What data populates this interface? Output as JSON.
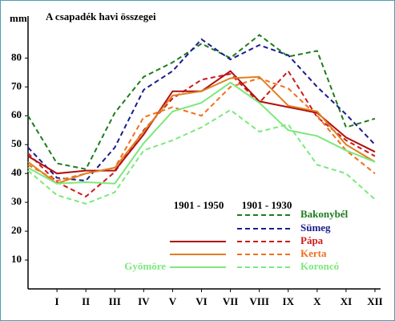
{
  "chart_data": {
    "type": "line",
    "title": "A csapadék havi összegei",
    "ylabel": "mm",
    "x": [
      0,
      1,
      2,
      3,
      4,
      5,
      6,
      7,
      8,
      9,
      10,
      11,
      12
    ],
    "xlim": [
      0,
      12
    ],
    "xticks": [
      {
        "value": 1,
        "label": "I"
      },
      {
        "value": 2,
        "label": "II"
      },
      {
        "value": 3,
        "label": "III"
      },
      {
        "value": 4,
        "label": "IV"
      },
      {
        "value": 5,
        "label": "V"
      },
      {
        "value": 6,
        "label": "VI"
      },
      {
        "value": 7,
        "label": "VII"
      },
      {
        "value": 8,
        "label": "VIII"
      },
      {
        "value": 9,
        "label": "IX"
      },
      {
        "value": 10,
        "label": "X"
      },
      {
        "value": 11,
        "label": "XI"
      },
      {
        "value": 12,
        "label": "XII"
      }
    ],
    "ylim": [
      0,
      94
    ],
    "yticks": [
      10,
      20,
      30,
      40,
      50,
      60,
      70,
      80
    ],
    "grid": false,
    "legend_headers": [
      "1901 - 1950",
      "1901 - 1930"
    ],
    "series": [
      {
        "name": "Bakonybél",
        "period": "1901 - 1930",
        "dashed": true,
        "color": "#1e7b1e",
        "values": [
          60,
          43.5,
          41.5,
          61,
          73.5,
          78.5,
          85,
          80,
          88,
          80.5,
          82.5,
          56,
          59
        ]
      },
      {
        "name": "Sümeg",
        "period": "1901 - 1930",
        "dashed": true,
        "color": "#1c1c8c",
        "values": [
          49,
          38.5,
          37.5,
          49,
          69,
          75.5,
          86.5,
          79.5,
          84.5,
          81,
          70,
          60.5,
          50
        ]
      },
      {
        "name": "Pápa",
        "period": "1901 - 1930",
        "dashed": true,
        "color": "#cc1a1a",
        "values": [
          47,
          37,
          32,
          40.5,
          55,
          66,
          72.5,
          74.5,
          64.5,
          75.5,
          59.5,
          51.5,
          46
        ]
      },
      {
        "name": "Kerta",
        "period": "1901 - 1930",
        "dashed": true,
        "color": "#f07020",
        "values": [
          43,
          37.5,
          40,
          42,
          59.5,
          63,
          60,
          70,
          73,
          69.5,
          60,
          48,
          40
        ]
      },
      {
        "name": "Koroncó",
        "period": "1901 - 1930",
        "dashed": true,
        "color": "#7ce87c",
        "values": [
          41,
          32.5,
          29.5,
          33.5,
          48,
          51.5,
          56,
          62,
          54.5,
          57,
          43,
          40,
          31
        ]
      },
      {
        "name": "Pápa",
        "period": "1901 - 1950",
        "dashed": false,
        "color": "#b01010",
        "values": [
          46,
          40,
          41,
          41,
          53.5,
          68.5,
          68.5,
          75.5,
          65,
          63,
          61,
          52.5,
          47.5
        ]
      },
      {
        "name": "Kerta",
        "period": "1901 - 1950",
        "dashed": false,
        "color": "#e08020",
        "values": [
          44,
          36.5,
          40,
          42,
          54.5,
          67,
          68.5,
          73,
          73.5,
          63.5,
          61.5,
          50,
          44
        ]
      },
      {
        "name": "Gyömöre",
        "period": "1901 - 1950",
        "dashed": false,
        "color": "#7ce87c",
        "values": [
          42,
          36.5,
          37,
          36.5,
          50.5,
          61.5,
          64.5,
          71.5,
          64.5,
          55,
          53,
          48,
          44
        ]
      }
    ]
  }
}
